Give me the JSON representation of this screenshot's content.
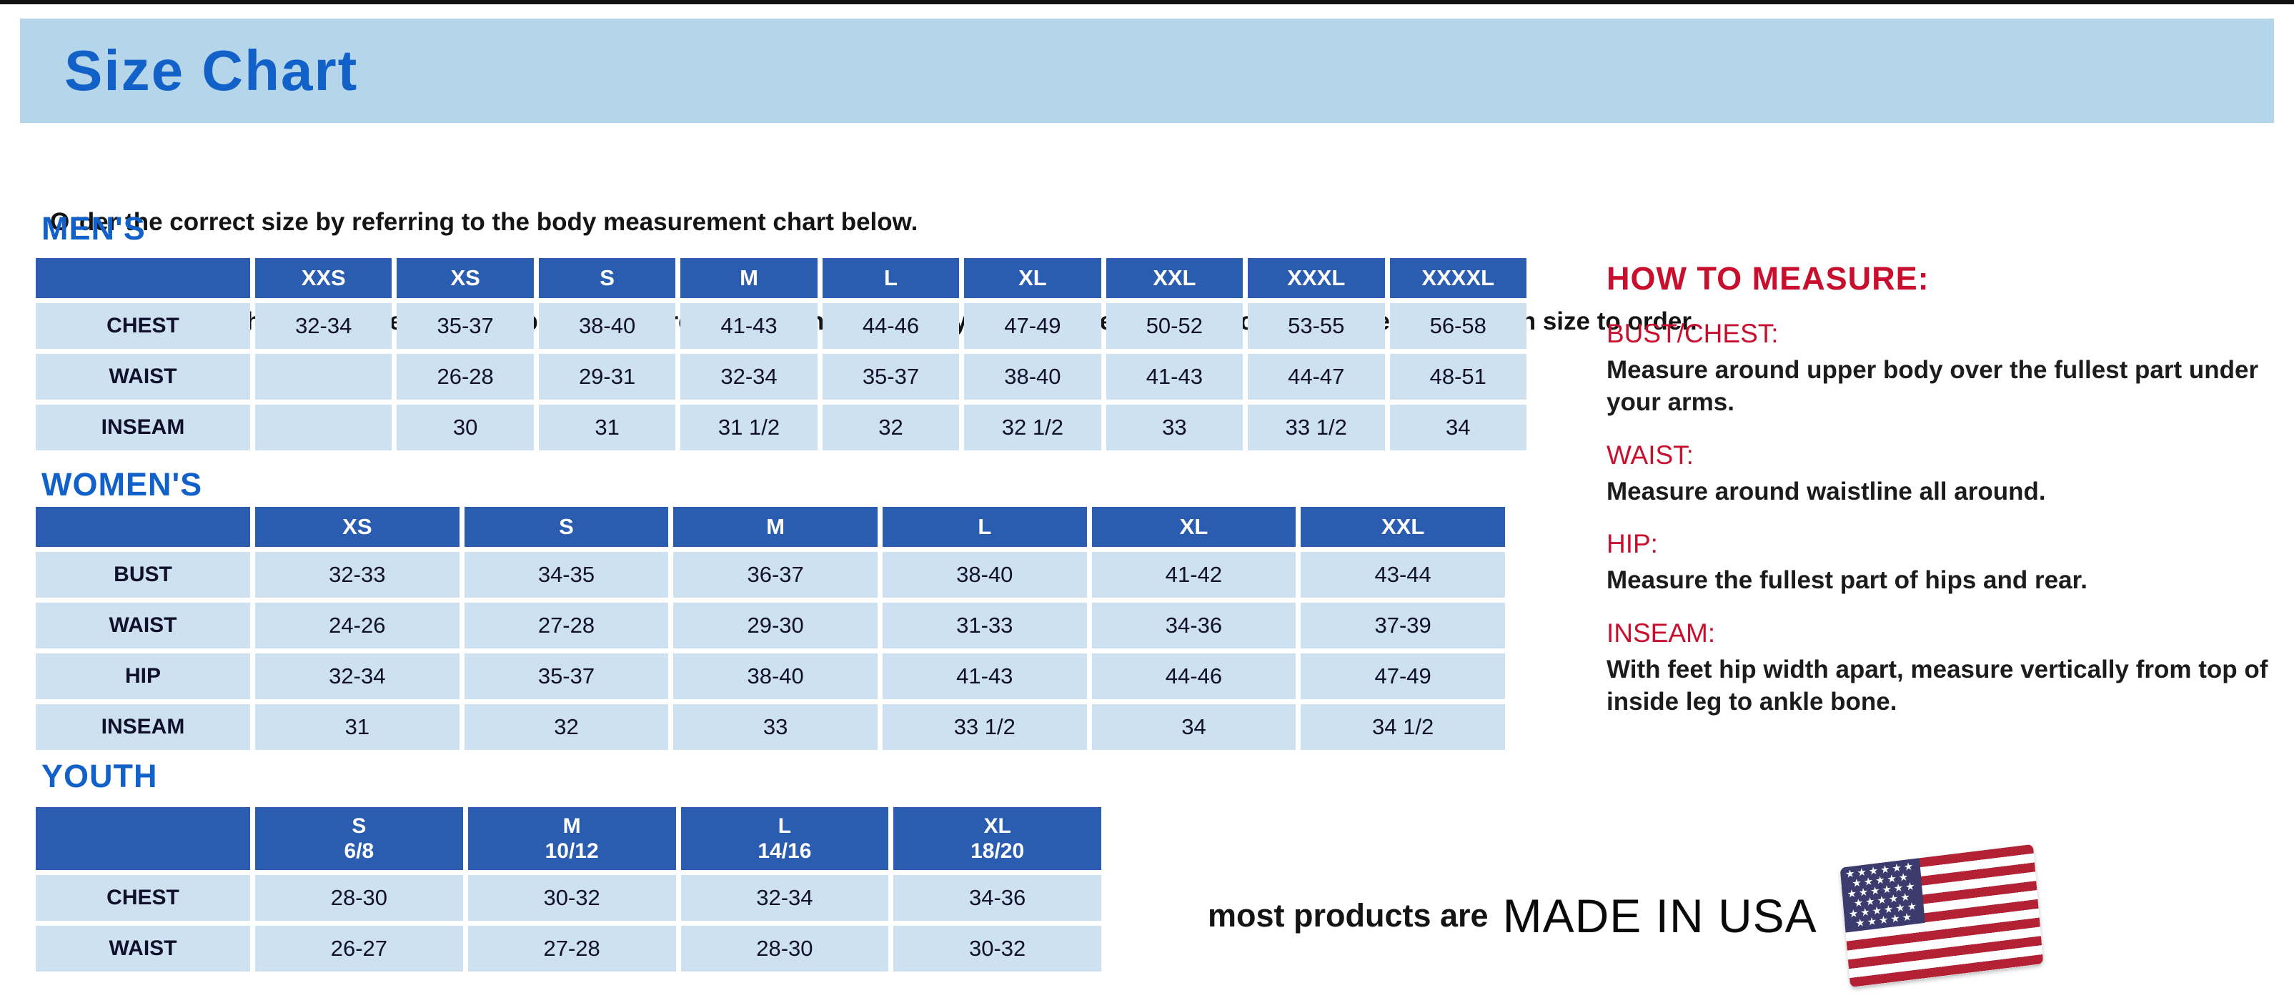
{
  "page": {
    "title": "Size Chart",
    "intro_line1": "Order the correct size by referring to the body measurement chart below.",
    "intro_line2": "Measurements shown on size chart are body measurements.  Find your body measurements on the chart to determine which size to order."
  },
  "tables": [
    {
      "section": "MEN'S",
      "columns": [
        "XXS",
        "XS",
        "S",
        "M",
        "L",
        "XL",
        "XXL",
        "XXXL",
        "XXXXL"
      ],
      "rows": [
        {
          "label": "CHEST",
          "values": [
            "32-34",
            "35-37",
            "38-40",
            "41-43",
            "44-46",
            "47-49",
            "50-52",
            "53-55",
            "56-58"
          ]
        },
        {
          "label": "WAIST",
          "values": [
            "",
            "26-28",
            "29-31",
            "32-34",
            "35-37",
            "38-40",
            "41-43",
            "44-47",
            "48-51"
          ]
        },
        {
          "label": "INSEAM",
          "values": [
            "",
            "30",
            "31",
            "31 1/2",
            "32",
            "32 1/2",
            "33",
            "33 1/2",
            "34"
          ]
        }
      ]
    },
    {
      "section": "WOMEN'S",
      "columns": [
        "XS",
        "S",
        "M",
        "L",
        "XL",
        "XXL"
      ],
      "rows": [
        {
          "label": "BUST",
          "values": [
            "32-33",
            "34-35",
            "36-37",
            "38-40",
            "41-42",
            "43-44"
          ]
        },
        {
          "label": "WAIST",
          "values": [
            "24-26",
            "27-28",
            "29-30",
            "31-33",
            "34-36",
            "37-39"
          ]
        },
        {
          "label": "HIP",
          "values": [
            "32-34",
            "35-37",
            "38-40",
            "41-43",
            "44-46",
            "47-49"
          ]
        },
        {
          "label": "INSEAM",
          "values": [
            "31",
            "32",
            "33",
            "33 1/2",
            "34",
            "34 1/2"
          ]
        }
      ]
    },
    {
      "section": "YOUTH",
      "columns": [
        "S\n6/8",
        "M\n10/12",
        "L\n14/16",
        "XL\n18/20"
      ],
      "rows": [
        {
          "label": "CHEST",
          "values": [
            "28-30",
            "30-32",
            "32-34",
            "34-36"
          ]
        },
        {
          "label": "WAIST",
          "values": [
            "26-27",
            "27-28",
            "28-30",
            "30-32"
          ]
        }
      ]
    }
  ],
  "how_to_measure": {
    "title": "HOW TO MEASURE:",
    "items": [
      {
        "heading": "BUST/CHEST:",
        "text": "Measure around upper body over the fullest part under your arms."
      },
      {
        "heading": "WAIST:",
        "text": "Measure around waistline all around."
      },
      {
        "heading": "HIP:",
        "text": "Measure the fullest part of hips and rear."
      },
      {
        "heading": "INSEAM:",
        "text": "With feet hip width apart, measure vertically from top of inside leg to ankle bone."
      }
    ]
  },
  "footer": {
    "made_in_prefix": "most products are",
    "made_in": "MADE IN USA",
    "flag_icon": "us-flag-icon"
  },
  "colors": {
    "banner_blue": "#b5d6ea",
    "title_blue": "#1161c8",
    "table_header_blue": "#2a5db0",
    "table_cell_blue": "#cde1f1",
    "heading_red": "#c8102e",
    "flag_red": "#b22234",
    "flag_blue": "#3c3b6e"
  }
}
